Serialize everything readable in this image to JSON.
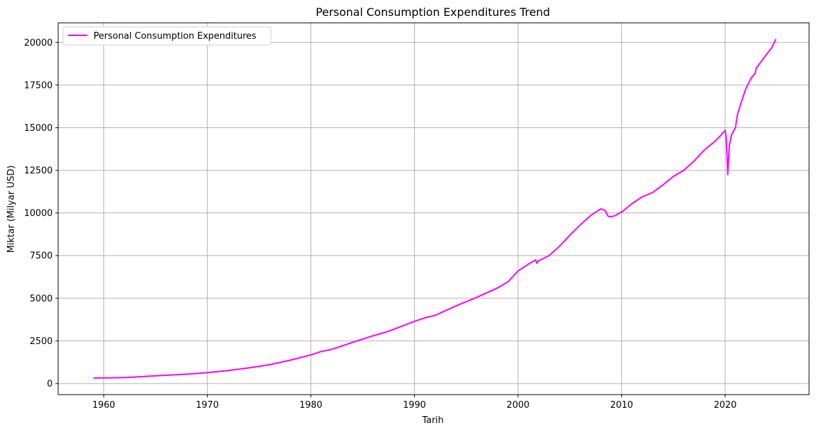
{
  "chart_data": {
    "type": "line",
    "title": "Personal Consumption Expenditures Trend",
    "xlabel": "Tarih",
    "ylabel": "Miktar (Milyar USD)",
    "xlim": [
      1955.6,
      2028.1
    ],
    "ylim": [
      -650,
      21150
    ],
    "x_ticks": [
      1960,
      1970,
      1980,
      1990,
      2000,
      2010,
      2020
    ],
    "y_ticks": [
      0,
      2500,
      5000,
      7500,
      10000,
      12500,
      15000,
      17500,
      20000
    ],
    "grid": true,
    "legend_position": "top-left",
    "series": [
      {
        "name": "Personal Consumption Expenditures",
        "color": "#ff00ff",
        "x": [
          1959.0,
          1962.0,
          1965.0,
          1968.0,
          1970.0,
          1972.0,
          1974.0,
          1976.0,
          1978.0,
          1980.0,
          1981.0,
          1982.0,
          1984.0,
          1986.0,
          1987.0,
          1988.0,
          1990.0,
          1991.0,
          1992.0,
          1994.0,
          1996.0,
          1998.0,
          1999.0,
          2000.0,
          2001.0,
          2001.7,
          2001.8,
          2002.0,
          2003.0,
          2004.0,
          2005.0,
          2006.0,
          2007.0,
          2007.5,
          2008.0,
          2008.4,
          2008.7,
          2009.0,
          2009.4,
          2009.8,
          2010.0,
          2011.0,
          2012.0,
          2013.0,
          2014.0,
          2015.0,
          2016.0,
          2017.0,
          2018.0,
          2019.0,
          2019.5,
          2020.0,
          2020.1,
          2020.25,
          2020.4,
          2020.6,
          2020.8,
          2021.0,
          2021.1,
          2021.2,
          2021.5,
          2022.0,
          2022.5,
          2022.9,
          2023.0,
          2023.5,
          2024.0,
          2024.5,
          2024.9
        ],
        "values": [
          320,
          350,
          450,
          550,
          640,
          760,
          920,
          1100,
          1370,
          1680,
          1880,
          2000,
          2410,
          2800,
          2970,
          3180,
          3650,
          3850,
          4000,
          4550,
          5050,
          5600,
          5950,
          6600,
          7000,
          7250,
          7050,
          7200,
          7500,
          8050,
          8700,
          9300,
          9850,
          10050,
          10250,
          10150,
          9800,
          9780,
          9850,
          10000,
          10050,
          10550,
          10950,
          11200,
          11650,
          12150,
          12500,
          13050,
          13700,
          14200,
          14500,
          14850,
          14400,
          12250,
          13950,
          14550,
          14800,
          15000,
          15500,
          15800,
          16400,
          17300,
          17900,
          18200,
          18500,
          18900,
          19300,
          19700,
          20200
        ]
      }
    ]
  }
}
